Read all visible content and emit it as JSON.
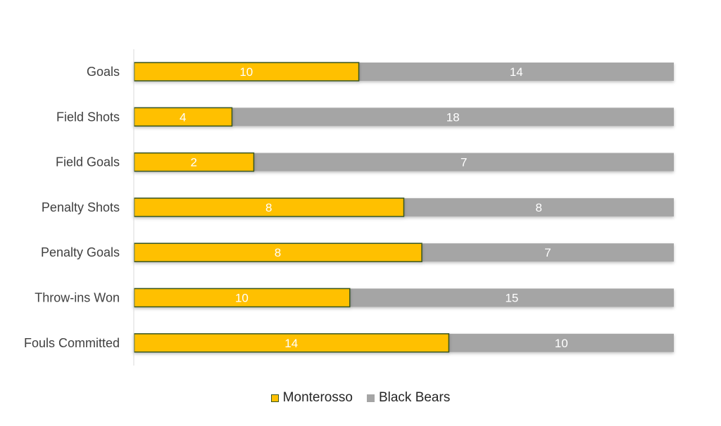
{
  "chart_data": {
    "type": "bar",
    "orientation": "horizontal",
    "stacked": true,
    "normalized": true,
    "categories": [
      "Goals",
      "Field Shots",
      "Field Goals",
      "Penalty Shots",
      "Penalty Goals",
      "Throw-ins Won",
      "Fouls Committed"
    ],
    "series": [
      {
        "name": "Monterosso",
        "values": [
          10,
          4,
          2,
          8,
          8,
          10,
          14
        ],
        "color": "#FFC000",
        "edge": "#375623"
      },
      {
        "name": "Black Bears",
        "values": [
          14,
          18,
          7,
          8,
          7,
          15,
          10
        ],
        "color": "#A5A5A5"
      }
    ],
    "title": "",
    "xlabel": "",
    "ylabel": "",
    "grid": false,
    "data_labels": true,
    "legend_position": "bottom"
  }
}
